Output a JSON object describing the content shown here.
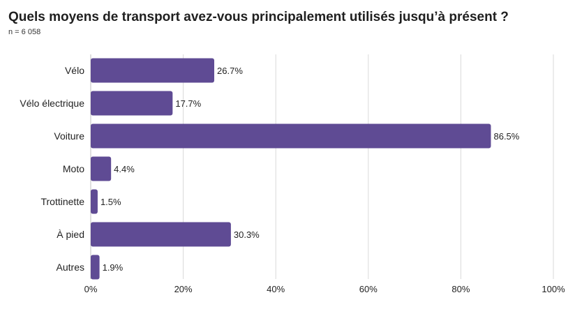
{
  "chart_data": {
    "type": "bar",
    "orientation": "horizontal",
    "title": "Quels moyens de transport avez-vous principalement utilisés jusqu’à présent ?",
    "subtitle": "n = 6 058",
    "categories": [
      "Vélo",
      "Vélo électrique",
      "Voiture",
      "Moto",
      "Trottinette",
      "À pied",
      "Autres"
    ],
    "values": [
      26.7,
      17.7,
      86.5,
      4.4,
      1.5,
      30.3,
      1.9
    ],
    "value_labels": [
      "26.7%",
      "17.7%",
      "86.5%",
      "4.4%",
      "1.5%",
      "30.3%",
      "1.9%"
    ],
    "xlim": [
      0,
      100
    ],
    "xticks": [
      0,
      20,
      40,
      60,
      80,
      100
    ],
    "xtick_labels": [
      "0%",
      "20%",
      "40%",
      "60%",
      "80%",
      "100%"
    ],
    "grid": true,
    "legend": "none",
    "colors": {
      "bar": "#5f4b94",
      "grid": "#d9d9d9"
    }
  }
}
